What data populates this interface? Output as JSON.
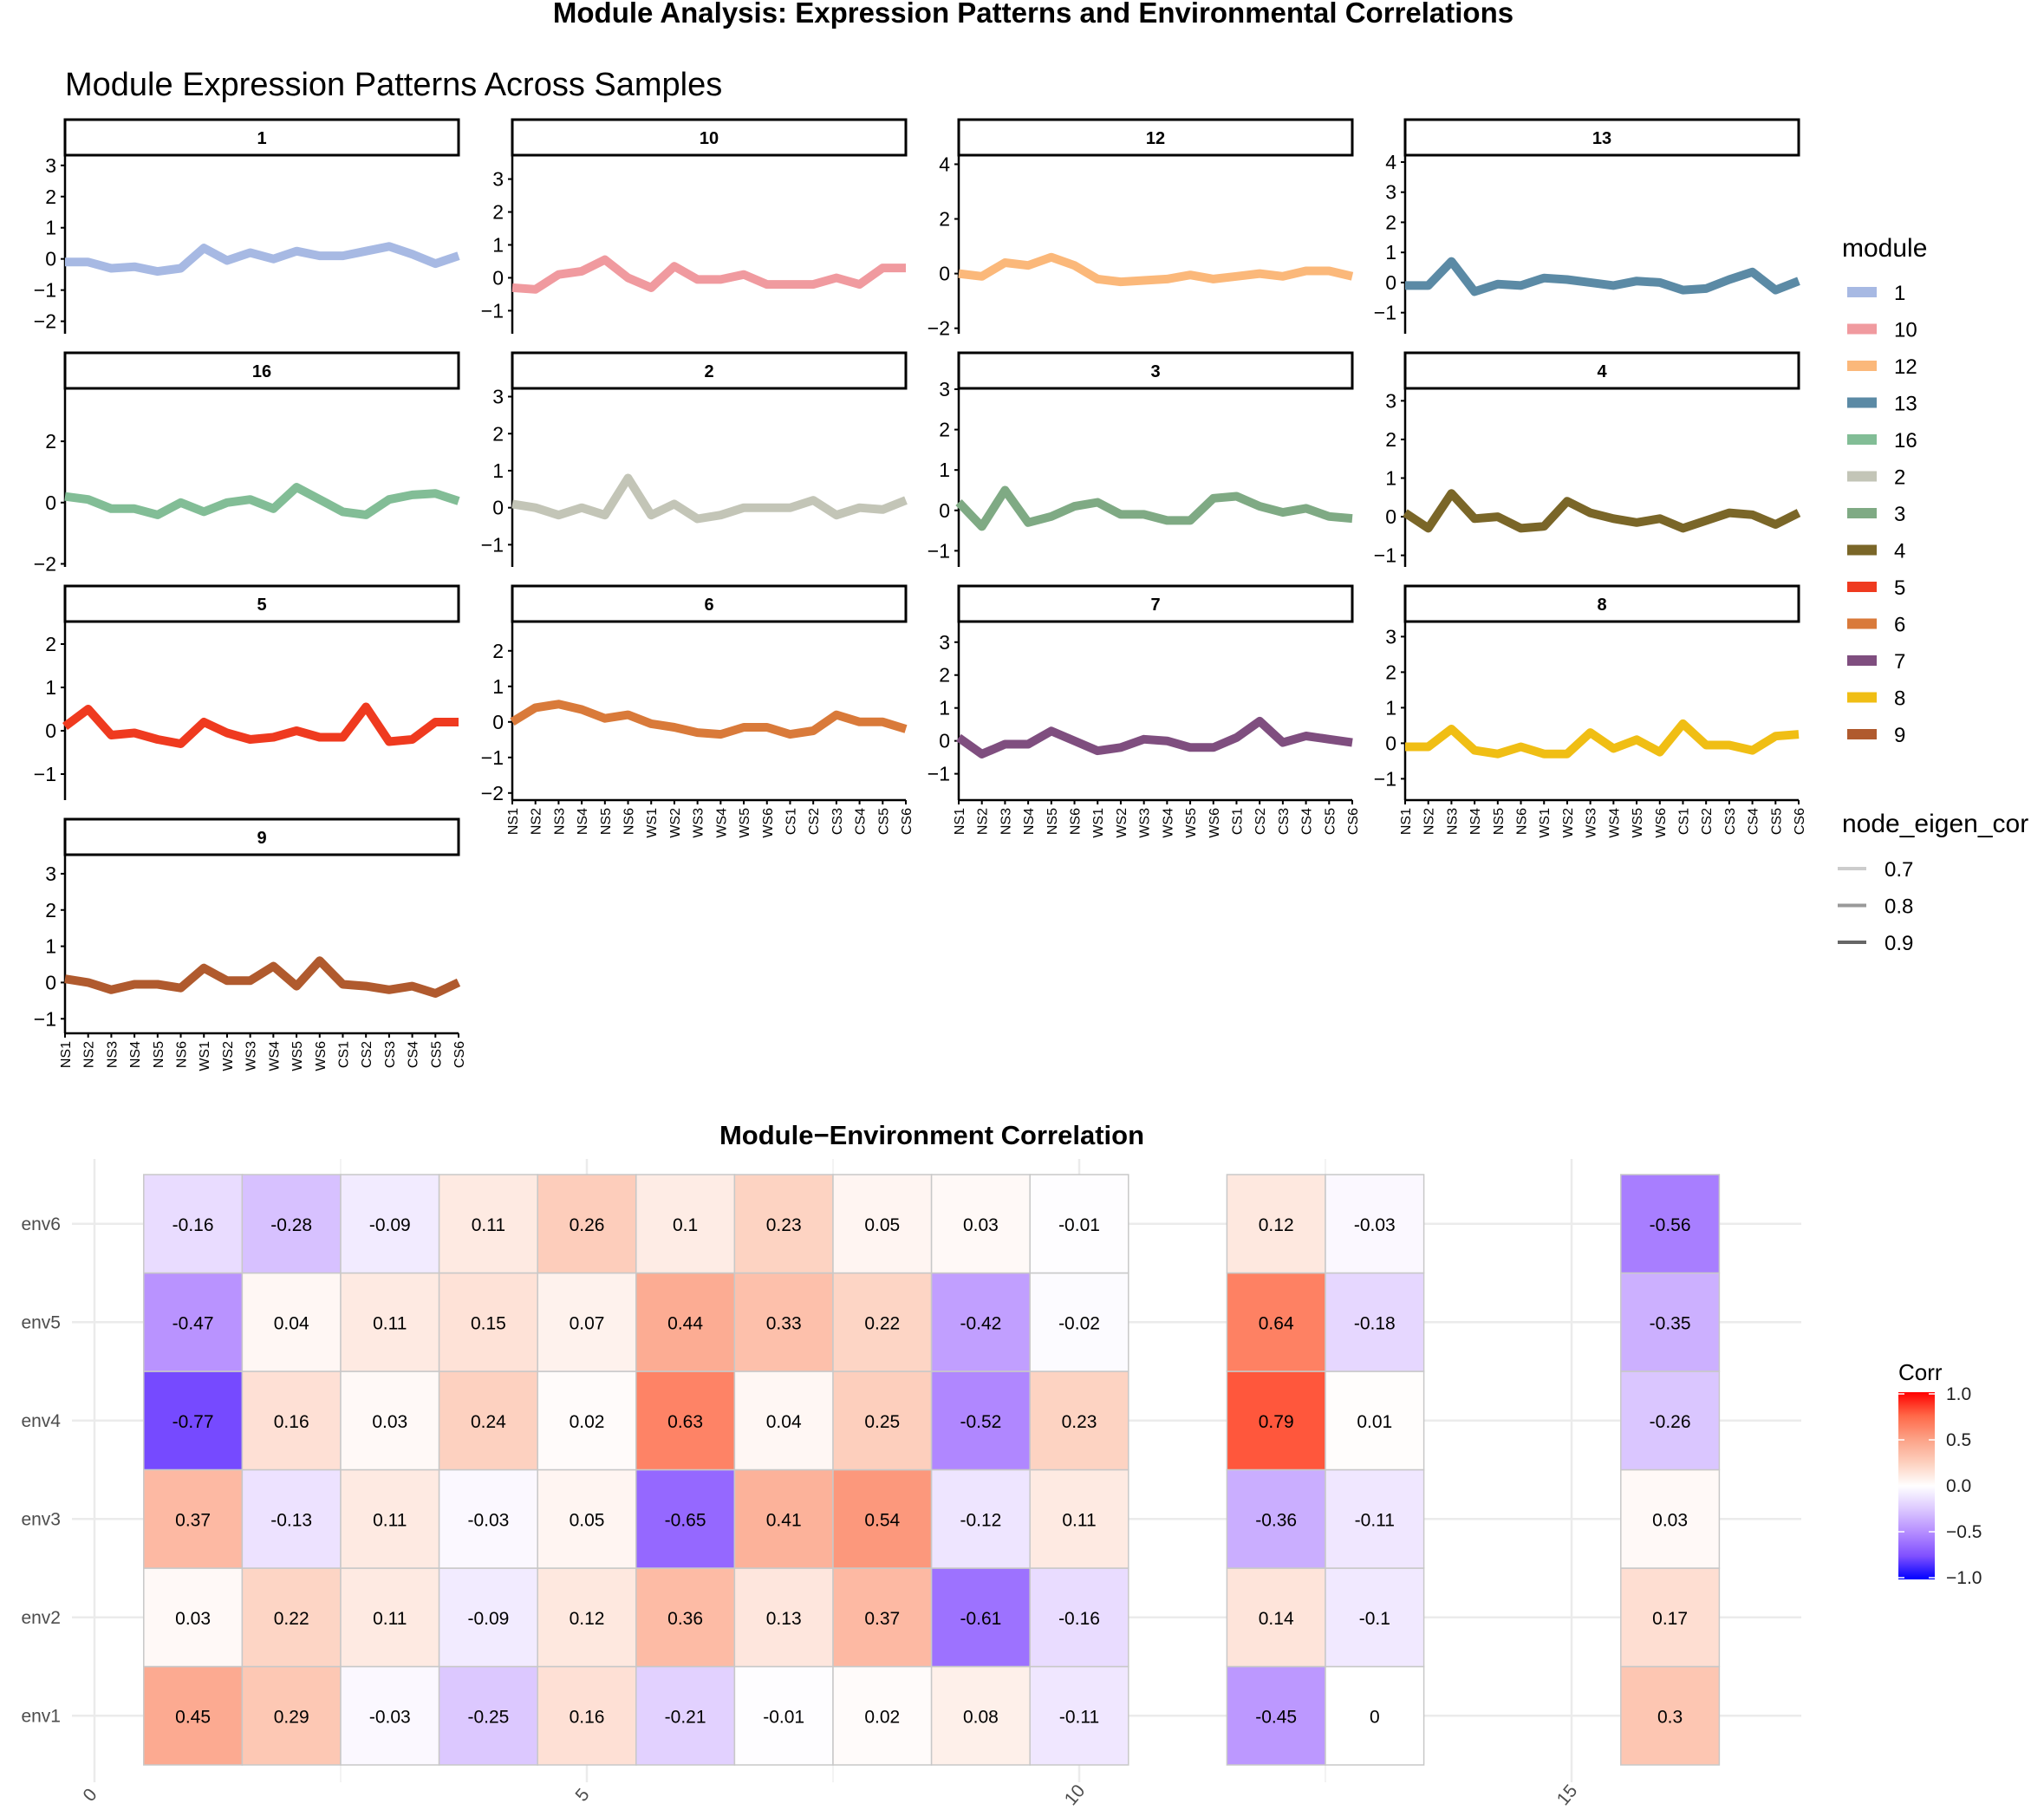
{
  "title": "Module Analysis: Expression Patterns and Environmental Correlations",
  "chart_data": [
    {
      "type": "line",
      "title": "Module Expression Patterns Across Samples",
      "x": [
        "NS1",
        "NS2",
        "NS3",
        "NS4",
        "NS5",
        "NS6",
        "WS1",
        "WS2",
        "WS3",
        "WS4",
        "WS5",
        "WS6",
        "CS1",
        "CS2",
        "CS3",
        "CS4",
        "CS5",
        "CS6"
      ],
      "legend": {
        "module_title": "module",
        "node_eigen_cor_title": "node_eigen_cor",
        "node_eigen_cor_levels": [
          "0.7",
          "0.8",
          "0.9"
        ],
        "node_eigen_cor_colors": [
          "#CCCCCC",
          "#999999",
          "#666666"
        ],
        "placement": "right"
      },
      "series": [
        {
          "name": "1",
          "color": "#A7B9E3",
          "ylim": [
            -2.4,
            3.3
          ],
          "yticks": [
            -2,
            -1,
            0,
            1,
            2,
            3
          ],
          "values": [
            -0.1,
            -0.1,
            -0.3,
            -0.25,
            -0.4,
            -0.3,
            0.35,
            -0.05,
            0.2,
            0.0,
            0.25,
            0.1,
            0.1,
            0.25,
            0.4,
            0.15,
            -0.15,
            0.1
          ]
        },
        {
          "name": "10",
          "color": "#F09A9F",
          "ylim": [
            -1.7,
            3.7
          ],
          "yticks": [
            -1,
            0,
            1,
            2,
            3
          ],
          "values": [
            -0.3,
            -0.35,
            0.1,
            0.2,
            0.55,
            0.0,
            -0.3,
            0.35,
            -0.05,
            -0.05,
            0.1,
            -0.2,
            -0.2,
            -0.2,
            0.0,
            -0.2,
            0.3,
            0.3
          ]
        },
        {
          "name": "12",
          "color": "#FBB87A",
          "ylim": [
            -2.2,
            4.3
          ],
          "yticks": [
            -2,
            0,
            2,
            4
          ],
          "values": [
            0.0,
            -0.1,
            0.4,
            0.3,
            0.6,
            0.3,
            -0.2,
            -0.3,
            -0.25,
            -0.2,
            -0.05,
            -0.2,
            -0.1,
            0.0,
            -0.1,
            0.1,
            0.1,
            -0.1
          ]
        },
        {
          "name": "13",
          "color": "#5B8AA5",
          "ylim": [
            -1.7,
            4.2
          ],
          "yticks": [
            -1,
            0,
            1,
            2,
            3,
            4
          ],
          "values": [
            -0.1,
            -0.1,
            0.7,
            -0.3,
            -0.05,
            -0.1,
            0.15,
            0.1,
            0.0,
            -0.1,
            0.05,
            0.0,
            -0.25,
            -0.2,
            0.1,
            0.35,
            -0.25,
            0.05
          ]
        },
        {
          "name": "16",
          "color": "#82BD96",
          "ylim": [
            -2.1,
            3.7
          ],
          "yticks": [
            -2,
            0,
            2
          ],
          "values": [
            0.2,
            0.1,
            -0.2,
            -0.2,
            -0.4,
            0.0,
            -0.3,
            0.0,
            0.1,
            -0.2,
            0.5,
            0.1,
            -0.3,
            -0.4,
            0.1,
            0.25,
            0.3,
            0.05
          ]
        },
        {
          "name": "2",
          "color": "#C3C5B7",
          "ylim": [
            -1.6,
            3.2
          ],
          "yticks": [
            -1,
            0,
            1,
            2,
            3
          ],
          "values": [
            0.1,
            0.0,
            -0.2,
            0.0,
            -0.2,
            0.8,
            -0.2,
            0.1,
            -0.3,
            -0.2,
            0.0,
            0.0,
            0.0,
            0.2,
            -0.2,
            0.0,
            -0.05,
            0.2
          ]
        },
        {
          "name": "3",
          "color": "#7FAA84",
          "ylim": [
            -1.4,
            3.0
          ],
          "yticks": [
            -1,
            0,
            1,
            2,
            3
          ],
          "values": [
            0.2,
            -0.4,
            0.5,
            -0.3,
            -0.15,
            0.1,
            0.2,
            -0.1,
            -0.1,
            -0.25,
            -0.25,
            0.3,
            0.35,
            0.1,
            -0.05,
            0.05,
            -0.15,
            -0.2
          ]
        },
        {
          "name": "4",
          "color": "#7A6628",
          "ylim": [
            -1.3,
            3.3
          ],
          "yticks": [
            -1,
            0,
            1,
            2,
            3
          ],
          "values": [
            0.1,
            -0.3,
            0.6,
            -0.05,
            0.0,
            -0.3,
            -0.25,
            0.4,
            0.1,
            -0.05,
            -0.15,
            -0.05,
            -0.3,
            -0.1,
            0.1,
            0.05,
            -0.2,
            0.1
          ]
        },
        {
          "name": "5",
          "color": "#EF3A1F",
          "ylim": [
            -1.6,
            2.5
          ],
          "yticks": [
            -1,
            0,
            1,
            2
          ],
          "values": [
            0.1,
            0.5,
            -0.1,
            -0.05,
            -0.2,
            -0.3,
            0.2,
            -0.05,
            -0.2,
            -0.15,
            0.0,
            -0.15,
            -0.15,
            0.55,
            -0.25,
            -0.2,
            0.2,
            0.2
          ]
        },
        {
          "name": "6",
          "color": "#D97A3A",
          "ylim": [
            -2.2,
            2.8
          ],
          "yticks": [
            -2,
            -1,
            0,
            1,
            2
          ],
          "values": [
            0.0,
            0.4,
            0.5,
            0.35,
            0.1,
            0.2,
            -0.05,
            -0.15,
            -0.3,
            -0.35,
            -0.15,
            -0.15,
            -0.35,
            -0.25,
            0.2,
            0.0,
            0.0,
            -0.2
          ]
        },
        {
          "name": "7",
          "color": "#7F4E7F",
          "ylim": [
            -1.8,
            3.6
          ],
          "yticks": [
            -1,
            0,
            1,
            2,
            3
          ],
          "values": [
            0.1,
            -0.4,
            -0.1,
            -0.1,
            0.3,
            0.0,
            -0.3,
            -0.2,
            0.05,
            0.0,
            -0.2,
            -0.2,
            0.1,
            0.6,
            -0.05,
            0.15,
            0.05,
            -0.05
          ]
        },
        {
          "name": "8",
          "color": "#F0BE14",
          "ylim": [
            -1.6,
            3.4
          ],
          "yticks": [
            -1,
            0,
            1,
            2,
            3
          ],
          "values": [
            -0.1,
            -0.1,
            0.4,
            -0.2,
            -0.3,
            -0.1,
            -0.3,
            -0.3,
            0.3,
            -0.15,
            0.1,
            -0.25,
            0.55,
            -0.05,
            -0.05,
            -0.2,
            0.2,
            0.25
          ]
        },
        {
          "name": "9",
          "color": "#B05A2E",
          "ylim": [
            -1.4,
            3.5
          ],
          "yticks": [
            -1,
            0,
            1,
            2,
            3
          ],
          "values": [
            0.1,
            0.0,
            -0.2,
            -0.05,
            -0.05,
            -0.15,
            0.4,
            0.05,
            0.05,
            0.45,
            -0.1,
            0.6,
            -0.05,
            -0.1,
            -0.2,
            -0.1,
            -0.3,
            0.0
          ]
        }
      ]
    },
    {
      "type": "heatmap",
      "title": "Module−Environment Correlation",
      "x": [
        1,
        2,
        3,
        4,
        5,
        6,
        7,
        8,
        9,
        10,
        12,
        13,
        16
      ],
      "xticks": [
        "0",
        "5",
        "10",
        "15"
      ],
      "y": [
        "env1",
        "env2",
        "env3",
        "env4",
        "env5",
        "env6"
      ],
      "values": {
        "env6": [
          "-0.16",
          "-0.28",
          "-0.09",
          "0.11",
          "0.26",
          "0.1",
          "0.23",
          "0.05",
          "0.03",
          "-0.01",
          "0.12",
          "-0.03",
          "-0.56"
        ],
        "env5": [
          "-0.47",
          "0.04",
          "0.11",
          "0.15",
          "0.07",
          "0.44",
          "0.33",
          "0.22",
          "-0.42",
          "-0.02",
          "0.64",
          "-0.18",
          "-0.35"
        ],
        "env4": [
          "-0.77",
          "0.16",
          "0.03",
          "0.24",
          "0.02",
          "0.63",
          "0.04",
          "0.25",
          "-0.52",
          "0.23",
          "0.79",
          "0.01",
          "-0.26"
        ],
        "env3": [
          "0.37",
          "-0.13",
          "0.11",
          "-0.03",
          "0.05",
          "-0.65",
          "0.41",
          "0.54",
          "-0.12",
          "0.11",
          "-0.36",
          "-0.11",
          "0.03"
        ],
        "env2": [
          "0.03",
          "0.22",
          "0.11",
          "-0.09",
          "0.12",
          "0.36",
          "0.13",
          "0.37",
          "-0.61",
          "-0.16",
          "0.14",
          "-0.1",
          "0.17"
        ],
        "env1": [
          "0.45",
          "0.29",
          "-0.03",
          "-0.25",
          "0.16",
          "-0.21",
          "-0.01",
          "0.02",
          "0.08",
          "-0.11",
          "-0.45",
          "0",
          "0.3"
        ]
      },
      "legend": {
        "title": "Corr",
        "ticks": [
          "1.0",
          "0.5",
          "0.0",
          "−0.5",
          "−1.0"
        ],
        "range": [
          -1,
          1
        ],
        "low_color": "#0000FF",
        "mid_color": "#FFFFFF",
        "high_color": "#FF0000",
        "placement": "right"
      },
      "grid": true
    }
  ]
}
